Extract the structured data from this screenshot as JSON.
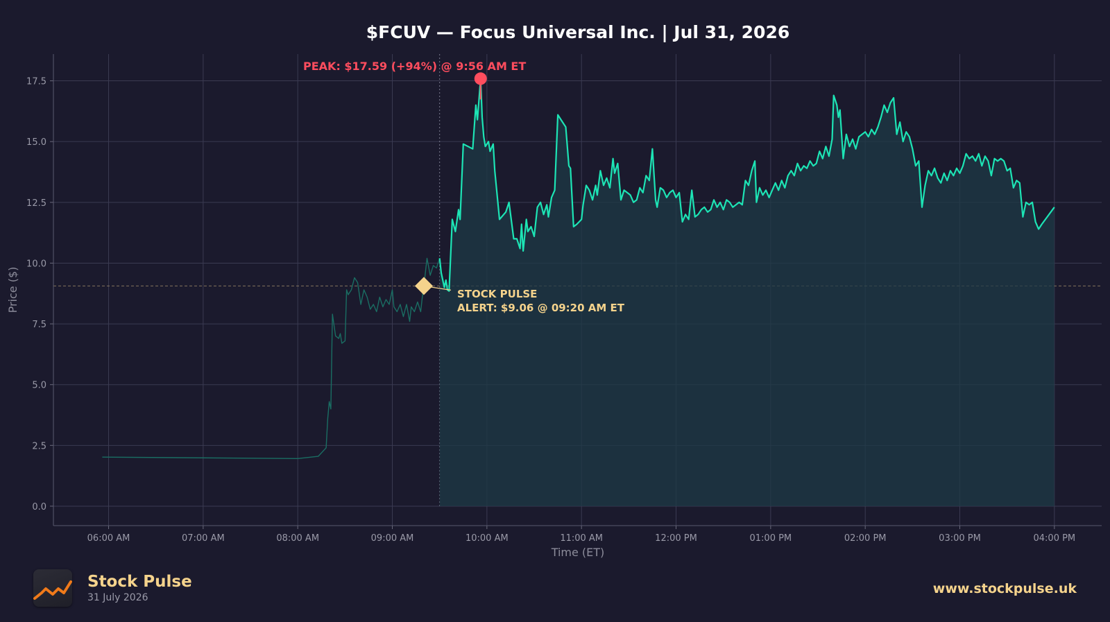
{
  "chart_data": {
    "type": "line",
    "title": "$FCUV — Focus Universal Inc.  |  Jul 31, 2026",
    "xlabel": "Time (ET)",
    "ylabel": "Price ($)",
    "x_unit": "minutes after 06:00 AM ET",
    "xlim": [
      "05:25 AM",
      "04:30 PM"
    ],
    "ylim": [
      -0.8,
      18.6
    ],
    "yticks": [
      0.0,
      2.5,
      5.0,
      7.5,
      10.0,
      12.5,
      15.0,
      17.5
    ],
    "ytick_labels": [
      "0.0",
      "2.5",
      "5.0",
      "7.5",
      "10.0",
      "12.5",
      "15.0",
      "17.5"
    ],
    "xtick_labels": [
      "06:00 AM",
      "07:00 AM",
      "08:00 AM",
      "09:00 AM",
      "10:00 AM",
      "11:00 AM",
      "12:00 PM",
      "01:00 PM",
      "02:00 PM",
      "03:00 PM",
      "04:00 PM"
    ],
    "grid": true,
    "market_open": "09:30 AM",
    "series": [
      {
        "session": "pre-market",
        "color": "#1a6e63",
        "points": [
          [
            "05:56 AM",
            2.02
          ],
          [
            "08:00 AM",
            1.96
          ],
          [
            "08:13 AM",
            2.05
          ],
          [
            "08:18 AM",
            2.4
          ],
          [
            "08:19 AM",
            3.6
          ],
          [
            "08:20 AM",
            4.3
          ],
          [
            "08:21 AM",
            4.0
          ],
          [
            "08:22 AM",
            7.9
          ],
          [
            "08:24 AM",
            7.0
          ],
          [
            "08:26 AM",
            6.9
          ],
          [
            "08:27 AM",
            7.1
          ],
          [
            "08:28 AM",
            6.7
          ],
          [
            "08:30 AM",
            6.8
          ],
          [
            "08:31 AM",
            8.9
          ],
          [
            "08:32 AM",
            8.7
          ],
          [
            "08:34 AM",
            8.9
          ],
          [
            "08:36 AM",
            9.4
          ],
          [
            "08:38 AM",
            9.2
          ],
          [
            "08:40 AM",
            8.3
          ],
          [
            "08:42 AM",
            8.9
          ],
          [
            "08:44 AM",
            8.6
          ],
          [
            "08:46 AM",
            8.1
          ],
          [
            "08:48 AM",
            8.3
          ],
          [
            "08:50 AM",
            8.0
          ],
          [
            "08:52 AM",
            8.6
          ],
          [
            "08:54 AM",
            8.2
          ],
          [
            "08:56 AM",
            8.5
          ],
          [
            "08:58 AM",
            8.3
          ],
          [
            "09:00 AM",
            8.9
          ],
          [
            "09:01 AM",
            8.2
          ],
          [
            "09:03 AM",
            8.0
          ],
          [
            "09:05 AM",
            8.3
          ],
          [
            "09:07 AM",
            7.8
          ],
          [
            "09:09 AM",
            8.3
          ],
          [
            "09:11 AM",
            7.6
          ],
          [
            "09:12 AM",
            8.2
          ],
          [
            "09:14 AM",
            8.0
          ],
          [
            "09:16 AM",
            8.4
          ],
          [
            "09:18 AM",
            8.0
          ],
          [
            "09:19 AM",
            8.6
          ],
          [
            "09:20 AM",
            9.06
          ],
          [
            "09:22 AM",
            10.2
          ],
          [
            "09:24 AM",
            9.5
          ],
          [
            "09:26 AM",
            9.9
          ],
          [
            "09:28 AM",
            9.8
          ],
          [
            "09:30 AM",
            10.2
          ]
        ]
      },
      {
        "session": "regular",
        "color": "#1de4b5",
        "points": [
          [
            "09:30 AM",
            10.2
          ],
          [
            "09:31 AM",
            9.6
          ],
          [
            "09:33 AM",
            9.0
          ],
          [
            "09:34 AM",
            9.3
          ],
          [
            "09:35 AM",
            8.9
          ],
          [
            "09:36 AM",
            8.85
          ],
          [
            "09:38 AM",
            11.8
          ],
          [
            "09:40 AM",
            11.3
          ],
          [
            "09:42 AM",
            12.2
          ],
          [
            "09:43 AM",
            11.8
          ],
          [
            "09:45 AM",
            14.9
          ],
          [
            "09:48 AM",
            14.8
          ],
          [
            "09:51 AM",
            14.7
          ],
          [
            "09:53 AM",
            16.5
          ],
          [
            "09:54 AM",
            15.9
          ],
          [
            "09:56 AM",
            17.59
          ],
          [
            "09:57 AM",
            16.0
          ],
          [
            "09:58 AM",
            15.2
          ],
          [
            "09:59 AM",
            14.8
          ],
          [
            "10:01 AM",
            15.0
          ],
          [
            "10:02 AM",
            14.6
          ],
          [
            "10:04 AM",
            14.9
          ],
          [
            "10:05 AM",
            13.8
          ],
          [
            "10:08 AM",
            11.8
          ],
          [
            "10:12 AM",
            12.1
          ],
          [
            "10:14 AM",
            12.5
          ],
          [
            "10:17 AM",
            11.0
          ],
          [
            "10:19 AM",
            11.0
          ],
          [
            "10:21 AM",
            10.6
          ],
          [
            "10:22 AM",
            11.6
          ],
          [
            "10:23 AM",
            10.5
          ],
          [
            "10:25 AM",
            11.8
          ],
          [
            "10:26 AM",
            11.3
          ],
          [
            "10:28 AM",
            11.5
          ],
          [
            "10:30 AM",
            11.1
          ],
          [
            "10:32 AM",
            12.3
          ],
          [
            "10:34 AM",
            12.5
          ],
          [
            "10:36 AM",
            12.0
          ],
          [
            "10:38 AM",
            12.4
          ],
          [
            "10:39 AM",
            11.9
          ],
          [
            "10:41 AM",
            12.7
          ],
          [
            "10:43 AM",
            13.0
          ],
          [
            "10:45 AM",
            16.1
          ],
          [
            "10:47 AM",
            15.9
          ],
          [
            "10:50 AM",
            15.6
          ],
          [
            "10:52 AM",
            14.0
          ],
          [
            "10:53 AM",
            13.9
          ],
          [
            "10:55 AM",
            11.5
          ],
          [
            "10:57 AM",
            11.6
          ],
          [
            "11:00 AM",
            11.8
          ],
          [
            "11:01 AM",
            12.4
          ],
          [
            "11:03 AM",
            13.2
          ],
          [
            "11:05 AM",
            13.0
          ],
          [
            "11:07 AM",
            12.6
          ],
          [
            "11:09 AM",
            13.2
          ],
          [
            "11:10 AM",
            12.8
          ],
          [
            "11:12 AM",
            13.8
          ],
          [
            "11:14 AM",
            13.2
          ],
          [
            "11:16 AM",
            13.5
          ],
          [
            "11:18 AM",
            13.1
          ],
          [
            "11:20 AM",
            14.3
          ],
          [
            "11:21 AM",
            13.7
          ],
          [
            "11:23 AM",
            14.1
          ],
          [
            "11:25 AM",
            12.6
          ],
          [
            "11:27 AM",
            13.0
          ],
          [
            "11:29 AM",
            12.9
          ],
          [
            "11:31 AM",
            12.8
          ],
          [
            "11:33 AM",
            12.5
          ],
          [
            "11:35 AM",
            12.6
          ],
          [
            "11:37 AM",
            13.1
          ],
          [
            "11:39 AM",
            12.9
          ],
          [
            "11:41 AM",
            13.6
          ],
          [
            "11:43 AM",
            13.4
          ],
          [
            "11:45 AM",
            14.7
          ],
          [
            "11:47 AM",
            12.6
          ],
          [
            "11:48 AM",
            12.3
          ],
          [
            "11:50 AM",
            13.1
          ],
          [
            "11:52 AM",
            13.0
          ],
          [
            "11:54 AM",
            12.7
          ],
          [
            "11:56 AM",
            12.9
          ],
          [
            "11:58 AM",
            13.0
          ],
          [
            "12:00 PM",
            12.7
          ],
          [
            "12:02 PM",
            12.9
          ],
          [
            "12:04 PM",
            11.7
          ],
          [
            "12:06 PM",
            12.0
          ],
          [
            "12:08 PM",
            11.8
          ],
          [
            "12:10 PM",
            13.0
          ],
          [
            "12:12 PM",
            11.9
          ],
          [
            "12:14 PM",
            12.0
          ],
          [
            "12:16 PM",
            12.2
          ],
          [
            "12:18 PM",
            12.3
          ],
          [
            "12:20 PM",
            12.1
          ],
          [
            "12:22 PM",
            12.2
          ],
          [
            "12:24 PM",
            12.6
          ],
          [
            "12:26 PM",
            12.3
          ],
          [
            "12:28 PM",
            12.5
          ],
          [
            "12:30 PM",
            12.2
          ],
          [
            "12:32 PM",
            12.6
          ],
          [
            "12:34 PM",
            12.5
          ],
          [
            "12:36 PM",
            12.3
          ],
          [
            "12:38 PM",
            12.4
          ],
          [
            "12:40 PM",
            12.5
          ],
          [
            "12:42 PM",
            12.4
          ],
          [
            "12:44 PM",
            13.4
          ],
          [
            "12:46 PM",
            13.2
          ],
          [
            "12:48 PM",
            13.8
          ],
          [
            "12:50 PM",
            14.2
          ],
          [
            "12:51 PM",
            12.5
          ],
          [
            "12:53 PM",
            13.1
          ],
          [
            "12:55 PM",
            12.8
          ],
          [
            "12:57 PM",
            13.0
          ],
          [
            "12:59 PM",
            12.7
          ],
          [
            "01:01 PM",
            13.0
          ],
          [
            "01:03 PM",
            13.3
          ],
          [
            "01:05 PM",
            13.0
          ],
          [
            "01:07 PM",
            13.4
          ],
          [
            "01:09 PM",
            13.1
          ],
          [
            "01:11 PM",
            13.6
          ],
          [
            "01:13 PM",
            13.8
          ],
          [
            "01:15 PM",
            13.6
          ],
          [
            "01:17 PM",
            14.1
          ],
          [
            "01:19 PM",
            13.8
          ],
          [
            "01:21 PM",
            14.0
          ],
          [
            "01:23 PM",
            13.9
          ],
          [
            "01:25 PM",
            14.2
          ],
          [
            "01:27 PM",
            14.0
          ],
          [
            "01:29 PM",
            14.1
          ],
          [
            "01:31 PM",
            14.6
          ],
          [
            "01:33 PM",
            14.3
          ],
          [
            "01:35 PM",
            14.8
          ],
          [
            "01:37 PM",
            14.4
          ],
          [
            "01:39 PM",
            15.1
          ],
          [
            "01:40 PM",
            16.9
          ],
          [
            "01:42 PM",
            16.5
          ],
          [
            "01:43 PM",
            16.0
          ],
          [
            "01:44 PM",
            16.3
          ],
          [
            "01:46 PM",
            14.3
          ],
          [
            "01:48 PM",
            15.3
          ],
          [
            "01:50 PM",
            14.8
          ],
          [
            "01:52 PM",
            15.1
          ],
          [
            "01:54 PM",
            14.7
          ],
          [
            "01:56 PM",
            15.2
          ],
          [
            "01:58 PM",
            15.3
          ],
          [
            "02:00 PM",
            15.4
          ],
          [
            "02:02 PM",
            15.2
          ],
          [
            "02:04 PM",
            15.5
          ],
          [
            "02:06 PM",
            15.3
          ],
          [
            "02:08 PM",
            15.6
          ],
          [
            "02:10 PM",
            16.0
          ],
          [
            "02:12 PM",
            16.5
          ],
          [
            "02:14 PM",
            16.2
          ],
          [
            "02:16 PM",
            16.6
          ],
          [
            "02:18 PM",
            16.8
          ],
          [
            "02:20 PM",
            15.3
          ],
          [
            "02:22 PM",
            15.8
          ],
          [
            "02:24 PM",
            15.0
          ],
          [
            "02:26 PM",
            15.4
          ],
          [
            "02:28 PM",
            15.2
          ],
          [
            "02:30 PM",
            14.7
          ],
          [
            "02:32 PM",
            14.0
          ],
          [
            "02:34 PM",
            14.2
          ],
          [
            "02:36 PM",
            12.3
          ],
          [
            "02:38 PM",
            13.2
          ],
          [
            "02:40 PM",
            13.8
          ],
          [
            "02:42 PM",
            13.6
          ],
          [
            "02:44 PM",
            13.9
          ],
          [
            "02:46 PM",
            13.5
          ],
          [
            "02:48 PM",
            13.3
          ],
          [
            "02:50 PM",
            13.7
          ],
          [
            "02:52 PM",
            13.4
          ],
          [
            "02:54 PM",
            13.8
          ],
          [
            "02:56 PM",
            13.6
          ],
          [
            "02:58 PM",
            13.9
          ],
          [
            "03:00 PM",
            13.7
          ],
          [
            "03:02 PM",
            14.0
          ],
          [
            "03:04 PM",
            14.5
          ],
          [
            "03:06 PM",
            14.3
          ],
          [
            "03:08 PM",
            14.4
          ],
          [
            "03:10 PM",
            14.2
          ],
          [
            "03:12 PM",
            14.5
          ],
          [
            "03:14 PM",
            14.0
          ],
          [
            "03:16 PM",
            14.4
          ],
          [
            "03:18 PM",
            14.2
          ],
          [
            "03:20 PM",
            13.6
          ],
          [
            "03:22 PM",
            14.3
          ],
          [
            "03:24 PM",
            14.2
          ],
          [
            "03:26 PM",
            14.3
          ],
          [
            "03:28 PM",
            14.2
          ],
          [
            "03:30 PM",
            13.8
          ],
          [
            "03:32 PM",
            13.9
          ],
          [
            "03:34 PM",
            13.1
          ],
          [
            "03:36 PM",
            13.4
          ],
          [
            "03:38 PM",
            13.3
          ],
          [
            "03:40 PM",
            11.9
          ],
          [
            "03:42 PM",
            12.5
          ],
          [
            "03:44 PM",
            12.4
          ],
          [
            "03:46 PM",
            12.5
          ],
          [
            "03:48 PM",
            11.7
          ],
          [
            "03:50 PM",
            11.4
          ],
          [
            "03:52 PM",
            11.6
          ],
          [
            "04:00 PM",
            12.3
          ]
        ]
      }
    ],
    "annotations": [
      {
        "type": "peak",
        "text": "PEAK: $17.59 (+94%) @ 9:56 AM ET",
        "x": "09:56 AM",
        "y": 17.59,
        "color": "#ff4d5e"
      },
      {
        "type": "alert",
        "lines": [
          "STOCK PULSE",
          "ALERT: $9.06 @ 09:20 AM ET"
        ],
        "x": "09:20 AM",
        "y": 9.06,
        "color": "#f5d38c"
      }
    ]
  },
  "footer": {
    "brand_name": "Stock Pulse",
    "brand_date": "31 July 2026",
    "url": "www.stockpulse.uk",
    "logo_icon": "rising-trend-line-icon",
    "logo_color": "#f07a1a"
  }
}
